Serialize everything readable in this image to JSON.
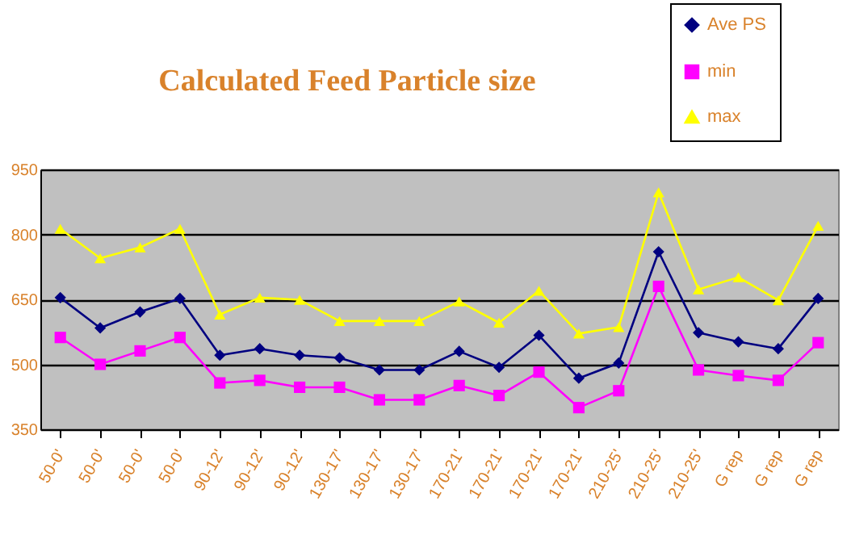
{
  "chart_data": {
    "type": "line",
    "title": "Calculated Feed Particle size",
    "categories": [
      "50-0'",
      "50-0'",
      "50-0'",
      "50-0'",
      "90-12'",
      "90-12'",
      "90-12'",
      "130-17'",
      "130-17'",
      "130-17'",
      "170-21'",
      "170-21'",
      "170-21'",
      "170-21'",
      "210-25'",
      "210-25'",
      "210-25'",
      "G rep",
      "G rep",
      "G rep"
    ],
    "series": [
      {
        "name": "Ave PS",
        "color": "#000080",
        "marker": "diamond",
        "values": [
          654,
          584,
          621,
          652,
          521,
          536,
          521,
          515,
          487,
          487,
          530,
          493,
          567,
          468,
          503,
          760,
          573,
          552,
          536,
          652
        ]
      },
      {
        "name": "min",
        "color": "#ff00ff",
        "marker": "square",
        "values": [
          562,
          500,
          531,
          562,
          457,
          463,
          447,
          447,
          418,
          418,
          451,
          428,
          482,
          400,
          439,
          680,
          487,
          474,
          463,
          550
        ]
      },
      {
        "name": "max",
        "color": "#ffff00",
        "marker": "triangle",
        "values": [
          813,
          745,
          770,
          813,
          615,
          654,
          649,
          600,
          600,
          600,
          645,
          596,
          670,
          571,
          586,
          897,
          673,
          701,
          648,
          820
        ]
      }
    ],
    "ylim": [
      350,
      950
    ],
    "yticks": [
      350,
      500,
      650,
      800,
      950
    ],
    "grid": "y",
    "legend": "top right",
    "line_style": "solid"
  }
}
